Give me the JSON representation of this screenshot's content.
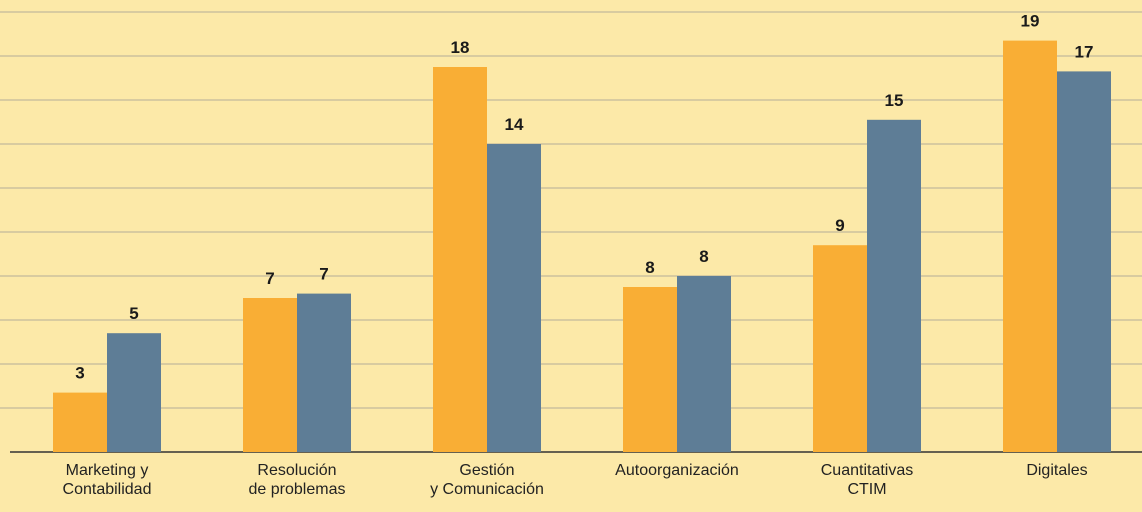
{
  "chart_data": {
    "type": "bar",
    "categories": [
      "Marketing y\nContabilidad",
      "Resolución\nde problemas",
      "Gestión\ny Comunicación",
      "Autoorganización",
      "Cuantitativas\nCTIM",
      "Digitales"
    ],
    "series": [
      {
        "color": "#f9ae35",
        "values": [
          2.7,
          7.0,
          17.5,
          7.5,
          9.4,
          18.7
        ],
        "value_labels": [
          "3",
          "7",
          "18",
          "8",
          "9",
          "19"
        ]
      },
      {
        "color": "#5e7d96",
        "values": [
          5.4,
          7.2,
          14.0,
          8.0,
          15.1,
          17.3
        ],
        "value_labels": [
          "5",
          "7",
          "14",
          "8",
          "15",
          "17"
        ]
      }
    ],
    "ylim": [
      0,
      20
    ],
    "yticks": [
      0,
      2,
      4,
      6,
      8,
      10,
      12,
      14,
      16,
      18,
      20
    ],
    "grid": true
  }
}
